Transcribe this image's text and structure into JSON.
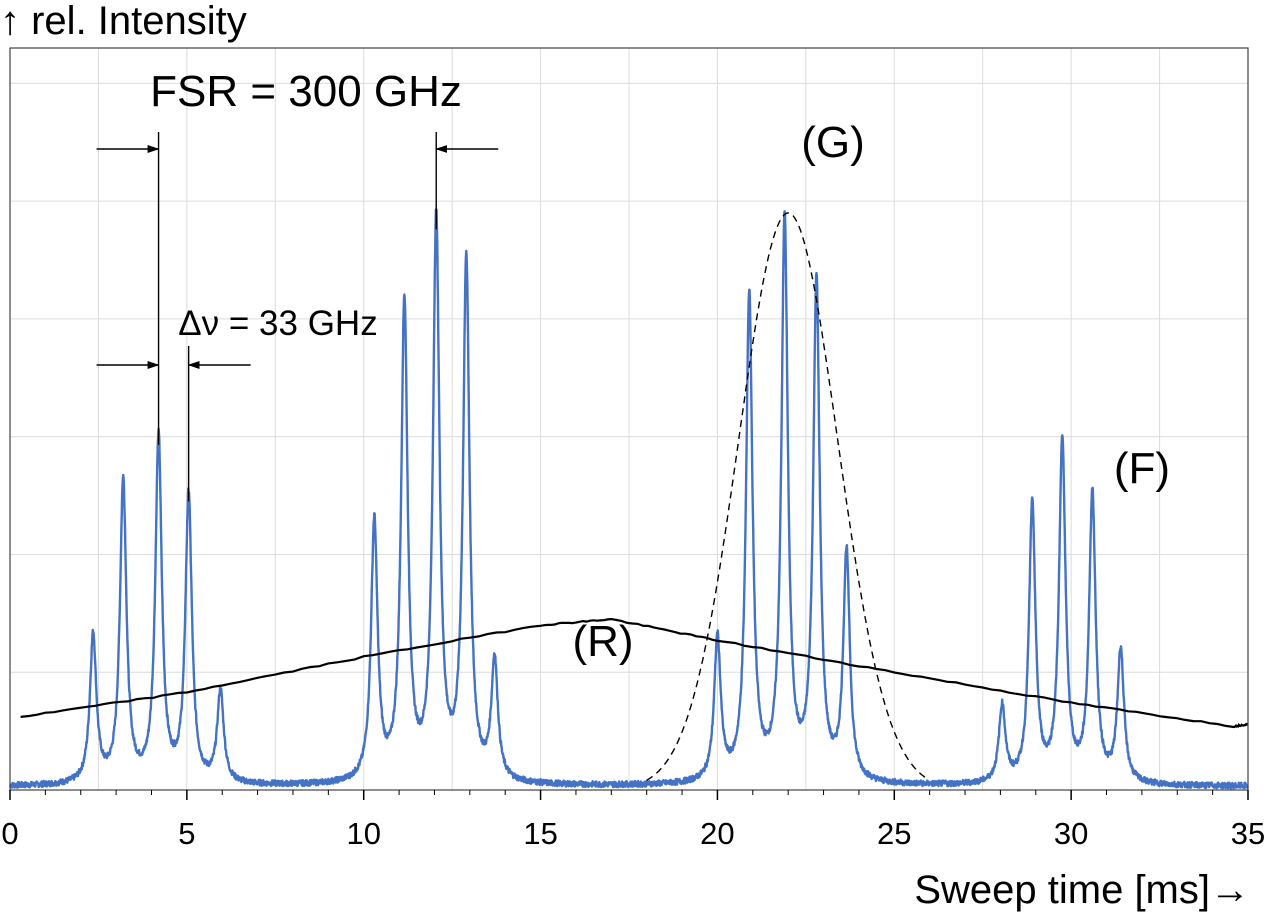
{
  "chart_data": {
    "type": "line",
    "ylabel": "↑ rel. Intensity",
    "xlabel": "Sweep time [ms]→",
    "xlim": [
      0,
      35
    ],
    "ylim": [
      0,
      6.3
    ],
    "x_ticks": [
      0,
      5,
      10,
      15,
      20,
      25,
      30,
      35
    ],
    "y_tick_labels_shown": false,
    "grid": true,
    "baseline": 0.03,
    "series": [
      {
        "name": "(F)",
        "style": "solid",
        "color": "#4472c4",
        "peaks": [
          {
            "x": 2.35,
            "y": 1.26
          },
          {
            "x": 3.2,
            "y": 2.57
          },
          {
            "x": 4.2,
            "y": 2.93
          },
          {
            "x": 5.05,
            "y": 2.45
          },
          {
            "x": 5.95,
            "y": 0.78
          },
          {
            "x": 10.3,
            "y": 2.21
          },
          {
            "x": 11.15,
            "y": 4.06
          },
          {
            "x": 12.05,
            "y": 4.76
          },
          {
            "x": 12.9,
            "y": 4.42
          },
          {
            "x": 13.7,
            "y": 1.02
          },
          {
            "x": 20.0,
            "y": 1.22
          },
          {
            "x": 20.9,
            "y": 4.13
          },
          {
            "x": 21.9,
            "y": 4.76
          },
          {
            "x": 22.8,
            "y": 4.25
          },
          {
            "x": 23.65,
            "y": 1.94
          },
          {
            "x": 28.05,
            "y": 0.65
          },
          {
            "x": 28.9,
            "y": 2.36
          },
          {
            "x": 29.75,
            "y": 2.89
          },
          {
            "x": 30.6,
            "y": 2.45
          },
          {
            "x": 31.4,
            "y": 1.13
          }
        ]
      },
      {
        "name": "(R)",
        "style": "solid",
        "color": "#000000",
        "x": [
          0.3,
          5,
          10,
          15,
          17,
          20,
          25,
          30,
          34.6,
          35
        ],
        "y": [
          0.62,
          0.83,
          1.13,
          1.4,
          1.45,
          1.27,
          1.0,
          0.74,
          0.54,
          0.56
        ]
      },
      {
        "name": "(G)",
        "style": "dashed",
        "color": "#000000",
        "gaussian": {
          "center": 22.0,
          "sigma": 1.4,
          "amplitude": 4.9,
          "x_start": 18.0,
          "x_end": 26.0
        }
      }
    ],
    "annotations": {
      "fsr": {
        "text": "FSR = 300 GHz",
        "x1": 4.2,
        "x2": 12.05
      },
      "delta_nu": {
        "text": "Δν = 33 GHz",
        "x1": 4.2,
        "x2": 5.05
      },
      "label_G": "(G)",
      "label_R": "(R)",
      "label_F": "(F)"
    }
  }
}
